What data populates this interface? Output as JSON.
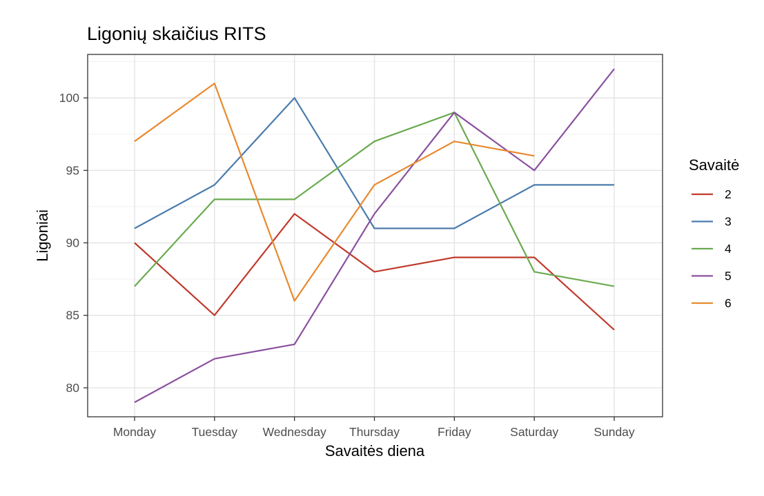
{
  "chart_data": {
    "type": "line",
    "title": "Ligonių skaičius RITS",
    "xlabel": "Savaitės diena",
    "ylabel": "Ligoniai",
    "categories": [
      "Monday",
      "Tuesday",
      "Wednesday",
      "Thursday",
      "Friday",
      "Saturday",
      "Sunday"
    ],
    "ylim": [
      78,
      103
    ],
    "yticks": [
      80,
      85,
      90,
      95,
      100
    ],
    "grid": true,
    "legend": {
      "title": "Savaitė",
      "position": "right"
    },
    "series": [
      {
        "name": "2",
        "color": "#c0392b",
        "values": [
          90,
          85,
          92,
          88,
          89,
          89,
          84
        ]
      },
      {
        "name": "3",
        "color": "#4a7bad",
        "values": [
          91,
          94,
          100,
          91,
          91,
          94,
          94
        ]
      },
      {
        "name": "4",
        "color": "#6aaa4f",
        "values": [
          87,
          93,
          93,
          97,
          99,
          88,
          87
        ]
      },
      {
        "name": "5",
        "color": "#8a4f9e",
        "values": [
          79,
          82,
          83,
          92,
          99,
          95,
          102
        ]
      },
      {
        "name": "6",
        "color": "#e8892f",
        "values": [
          97,
          101,
          86,
          94,
          97,
          96,
          null
        ]
      }
    ]
  }
}
